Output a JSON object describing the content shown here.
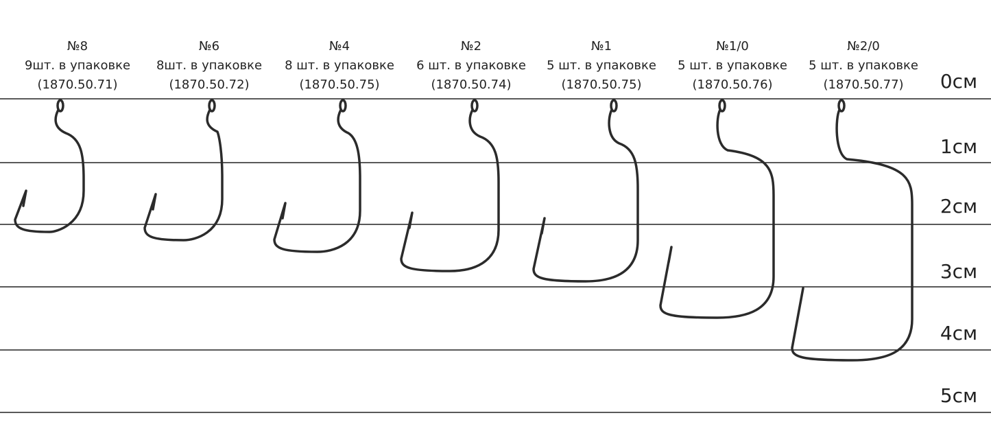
{
  "items": [
    {
      "size": "№8",
      "qty": "9шт.  в упаковке",
      "code": "(1870.50.71)"
    },
    {
      "size": "№6",
      "qty": "8шт.  в упаковке",
      "code": "(1870.50.72)"
    },
    {
      "size": "№4",
      "qty": "8 шт.  в упаковке",
      "code": "(1870.50.75)"
    },
    {
      "size": "№2",
      "qty": "6 шт.  в упаковке",
      "code": "(1870.50.74)"
    },
    {
      "size": "№1",
      "qty": "5 шт.  в упаковке",
      "code": "(1870.50.75)"
    },
    {
      "size": "№1/0",
      "qty": "5 шт.  в упаковке",
      "code": "(1870.50.76)"
    },
    {
      "size": "№2/0",
      "qty": "5 шт.  в упаковке",
      "code": "(1870.50.77)"
    }
  ],
  "scale": [
    "0см",
    "1см",
    "2см",
    "3см",
    "4см",
    "5см"
  ]
}
